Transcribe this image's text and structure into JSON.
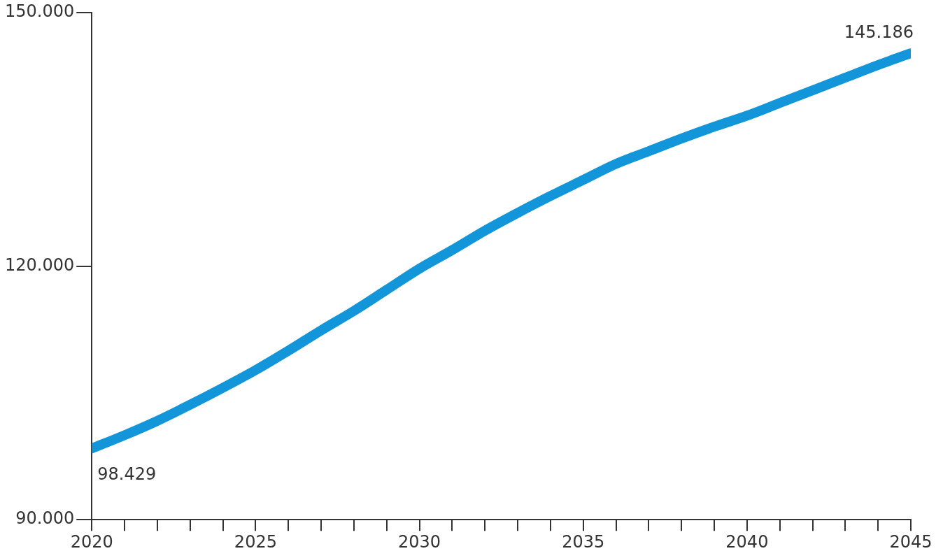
{
  "chart_data": {
    "type": "line",
    "x": [
      2020,
      2021,
      2022,
      2023,
      2024,
      2025,
      2026,
      2027,
      2028,
      2029,
      2030,
      2031,
      2032,
      2033,
      2034,
      2035,
      2036,
      2037,
      2038,
      2039,
      2040,
      2041,
      2042,
      2043,
      2044,
      2045
    ],
    "series": [
      {
        "color": "#1296d9",
        "values": [
          98429,
          100000,
          101700,
          103600,
          105600,
          107700,
          110000,
          112400,
          114700,
          117200,
          119700,
          121900,
          124200,
          126300,
          128300,
          130200,
          132100,
          133600,
          135100,
          136500,
          137800,
          139300,
          140800,
          142300,
          143800,
          145186
        ],
        "value_labels": [
          "98.429",
          null,
          null,
          null,
          null,
          null,
          null,
          null,
          null,
          null,
          null,
          null,
          null,
          null,
          null,
          null,
          null,
          null,
          null,
          null,
          null,
          null,
          null,
          null,
          null,
          "145.186"
        ]
      }
    ],
    "xlim": [
      2020,
      2045
    ],
    "xticks": [
      2020,
      {
        "value": 2021,
        "label": null
      },
      {
        "value": 2022,
        "label": null
      },
      {
        "value": 2023,
        "label": null
      },
      {
        "value": 2024,
        "label": null
      },
      2025,
      {
        "value": 2026,
        "label": null
      },
      {
        "value": 2027,
        "label": null
      },
      {
        "value": 2028,
        "label": null
      },
      {
        "value": 2029,
        "label": null
      },
      2030,
      {
        "value": 2031,
        "label": null
      },
      {
        "value": 2032,
        "label": null
      },
      {
        "value": 2033,
        "label": null
      },
      {
        "value": 2034,
        "label": null
      },
      2035,
      {
        "value": 2036,
        "label": null
      },
      {
        "value": 2037,
        "label": null
      },
      {
        "value": 2038,
        "label": null
      },
      {
        "value": 2039,
        "label": null
      },
      2040,
      {
        "value": 2041,
        "label": null
      },
      {
        "value": 2042,
        "label": null
      },
      {
        "value": 2043,
        "label": null
      },
      {
        "value": 2044,
        "label": null
      },
      2045
    ],
    "ylim": [
      90000,
      150000
    ],
    "yticks": [
      {
        "value": 90000,
        "label": "90.000"
      },
      {
        "value": 120000,
        "label": "120.000"
      },
      {
        "value": 150000,
        "label": "150.000"
      }
    ],
    "grid": false,
    "legend": false,
    "marker": "none",
    "line_style": "solid"
  }
}
